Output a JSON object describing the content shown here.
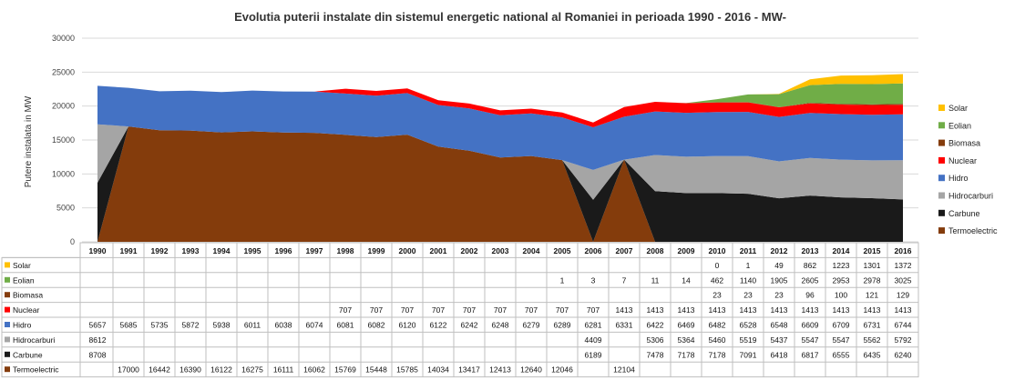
{
  "chart_data": {
    "type": "area",
    "title": "Evolutia puterii instalate din sistemul energetic national al Romaniei in perioada 1990 - 2016  - MW-",
    "ylabel": "Putere instalata in MW",
    "xlabel": "",
    "ylim": [
      0,
      30000
    ],
    "yticks": [
      0,
      5000,
      10000,
      15000,
      20000,
      25000,
      30000
    ],
    "ytick_labels": [
      "0",
      "5000",
      "10000",
      "15000",
      "20000",
      "25000",
      "30000"
    ],
    "categories": [
      "1990",
      "1991",
      "1992",
      "1993",
      "1994",
      "1995",
      "1996",
      "1997",
      "1998",
      "1999",
      "2000",
      "2001",
      "2002",
      "2003",
      "2004",
      "2005",
      "2006",
      "2007",
      "2008",
      "2009",
      "2010",
      "2011",
      "2012",
      "2013",
      "2014",
      "2015",
      "2016"
    ],
    "series": [
      {
        "name": "Solar",
        "color": "#FFC000",
        "values": [
          null,
          null,
          null,
          null,
          null,
          null,
          null,
          null,
          null,
          null,
          null,
          null,
          null,
          null,
          null,
          null,
          null,
          null,
          null,
          null,
          0,
          1,
          49,
          862,
          1223,
          1301,
          1372
        ]
      },
      {
        "name": "Eolian",
        "color": "#70AD47",
        "values": [
          null,
          null,
          null,
          null,
          null,
          null,
          null,
          null,
          null,
          null,
          null,
          null,
          null,
          null,
          null,
          1,
          3,
          7,
          11,
          14,
          462,
          1140,
          1905,
          2605,
          2953,
          2978,
          3025
        ]
      },
      {
        "name": "Biomasa",
        "color": "#843C0C",
        "values": [
          null,
          null,
          null,
          null,
          null,
          null,
          null,
          null,
          null,
          null,
          null,
          null,
          null,
          null,
          null,
          null,
          null,
          null,
          null,
          null,
          23,
          23,
          23,
          96,
          100,
          121,
          129
        ]
      },
      {
        "name": "Nuclear",
        "color": "#FF0000",
        "values": [
          null,
          null,
          null,
          null,
          null,
          null,
          null,
          null,
          707,
          707,
          707,
          707,
          707,
          707,
          707,
          707,
          707,
          1413,
          1413,
          1413,
          1413,
          1413,
          1413,
          1413,
          1413,
          1413,
          1413
        ]
      },
      {
        "name": "Hidro",
        "color": "#4472C4",
        "values": [
          5657,
          5685,
          5735,
          5872,
          5938,
          6011,
          6038,
          6074,
          6081,
          6082,
          6120,
          6122,
          6242,
          6248,
          6279,
          6289,
          6281,
          6331,
          6422,
          6469,
          6482,
          6528,
          6548,
          6609,
          6709,
          6731,
          6744
        ]
      },
      {
        "name": "Hidrocarburi",
        "color": "#A5A5A5",
        "values": [
          8612,
          null,
          null,
          null,
          null,
          null,
          null,
          null,
          null,
          null,
          null,
          null,
          null,
          null,
          null,
          null,
          4409,
          null,
          5306,
          5364,
          5460,
          5519,
          5437,
          5547,
          5547,
          5562,
          5792
        ]
      },
      {
        "name": "Carbune",
        "color": "#1A1A1A",
        "values": [
          8708,
          null,
          null,
          null,
          null,
          null,
          null,
          null,
          null,
          null,
          null,
          null,
          null,
          null,
          null,
          null,
          6189,
          null,
          7478,
          7178,
          7178,
          7091,
          6418,
          6817,
          6555,
          6435,
          6240
        ]
      },
      {
        "name": "Termoelectric",
        "color": "#843C0C",
        "values": [
          null,
          17000,
          16442,
          16390,
          16122,
          16275,
          16111,
          16062,
          15769,
          15448,
          15785,
          14034,
          13417,
          12413,
          12640,
          12046,
          null,
          12104,
          null,
          null,
          null,
          null,
          null,
          null,
          null,
          null,
          null
        ]
      }
    ],
    "stack_order_bottom_to_top": [
      "Termoelectric",
      "Carbune",
      "Hidrocarburi",
      "Hidro",
      "Nuclear",
      "Biomasa",
      "Eolian",
      "Solar"
    ],
    "legend_position": "right",
    "grid": true,
    "data_table": true
  }
}
